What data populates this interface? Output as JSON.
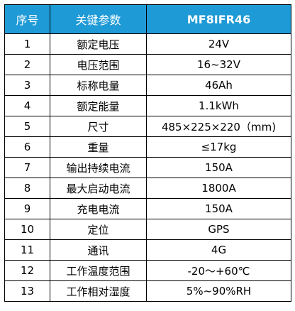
{
  "header": {
    "col_no": "序号",
    "col_param": "关键参数",
    "col_value": "MF8IFR46"
  },
  "rows": [
    {
      "no": "1",
      "param": "额定电压",
      "value": "24V"
    },
    {
      "no": "2",
      "param": "电压范围",
      "value": "16~32V"
    },
    {
      "no": "3",
      "param": "标称电量",
      "value": "46Ah"
    },
    {
      "no": "4",
      "param": "额定能量",
      "value": "1.1kWh"
    },
    {
      "no": "5",
      "param": "尺寸",
      "value": "485×225×220（mm)"
    },
    {
      "no": "6",
      "param": "重量",
      "value": "≤17kg"
    },
    {
      "no": "7",
      "param": "输出持续电流",
      "value": "150A"
    },
    {
      "no": "8",
      "param": "最大启动电流",
      "value": "1800A"
    },
    {
      "no": "9",
      "param": "充电电流",
      "value": "150A"
    },
    {
      "no": "10",
      "param": "定位",
      "value": "GPS"
    },
    {
      "no": "11",
      "param": "通讯",
      "value": "4G"
    },
    {
      "no": "12",
      "param": "工作温度范围",
      "value": "-20～+60℃"
    },
    {
      "no": "13",
      "param": "工作相对湿度",
      "value": "5%~90%RH"
    }
  ],
  "colors": {
    "header_bg": "#1e9ad6",
    "header_text": "#ffffff",
    "border": "#000000"
  }
}
